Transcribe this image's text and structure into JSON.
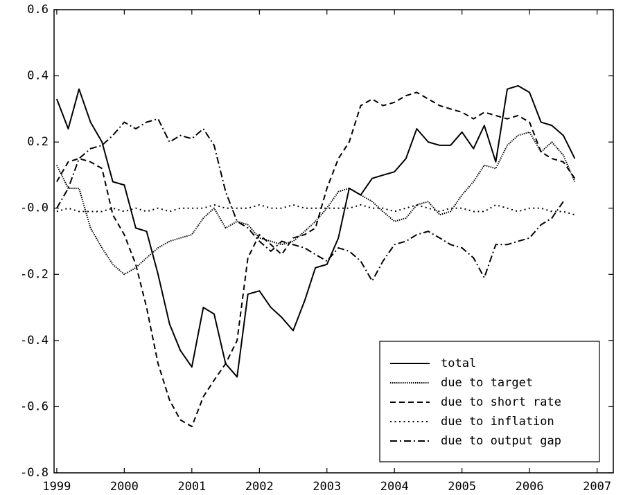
{
  "chart_data": {
    "type": "line",
    "x": [
      1999,
      1999.17,
      1999.33,
      1999.5,
      1999.67,
      1999.83,
      2000,
      2000.17,
      2000.33,
      2000.5,
      2000.67,
      2000.83,
      2001,
      2001.17,
      2001.33,
      2001.5,
      2001.67,
      2001.83,
      2002,
      2002.17,
      2002.33,
      2002.5,
      2002.67,
      2002.83,
      2003,
      2003.17,
      2003.33,
      2003.5,
      2003.67,
      2003.83,
      2004,
      2004.17,
      2004.33,
      2004.5,
      2004.67,
      2004.83,
      2005,
      2005.17,
      2005.33,
      2005.5,
      2005.67,
      2005.83,
      2006,
      2006.17,
      2006.33,
      2006.5,
      2006.67
    ],
    "series": [
      {
        "name": "total",
        "color": "#000000",
        "line_style": "solid",
        "values": [
          0.33,
          0.24,
          0.36,
          0.26,
          0.2,
          0.08,
          0.07,
          -0.06,
          -0.07,
          -0.2,
          -0.35,
          -0.43,
          -0.48,
          -0.3,
          -0.32,
          -0.47,
          -0.51,
          -0.26,
          -0.25,
          -0.3,
          -0.33,
          -0.37,
          -0.28,
          -0.18,
          -0.17,
          -0.09,
          0.06,
          0.04,
          0.09,
          0.1,
          0.11,
          0.15,
          0.24,
          0.2,
          0.19,
          0.19,
          0.23,
          0.18,
          0.25,
          0.14,
          0.36,
          0.37,
          0.35,
          0.26,
          0.25,
          0.22,
          0.15
        ]
      },
      {
        "name": "due to target",
        "color": "#000000",
        "line_style": "dense-dotted",
        "values": [
          0.13,
          0.06,
          0.06,
          -0.06,
          -0.12,
          -0.17,
          -0.2,
          -0.18,
          -0.15,
          -0.12,
          -0.1,
          -0.09,
          -0.08,
          -0.03,
          0.0,
          -0.06,
          -0.04,
          -0.05,
          -0.09,
          -0.1,
          -0.11,
          -0.1,
          -0.07,
          -0.04,
          0.0,
          0.05,
          0.06,
          0.04,
          0.02,
          -0.01,
          -0.04,
          -0.03,
          0.01,
          0.02,
          -0.02,
          -0.01,
          0.04,
          0.08,
          0.13,
          0.12,
          0.19,
          0.22,
          0.23,
          0.17,
          0.2,
          0.16,
          0.08
        ]
      },
      {
        "name": "due to short rate",
        "color": "#000000",
        "line_style": "dashed",
        "values": [
          0.08,
          0.14,
          0.15,
          0.14,
          0.12,
          -0.02,
          -0.08,
          -0.17,
          -0.3,
          -0.47,
          -0.58,
          -0.64,
          -0.66,
          -0.57,
          -0.52,
          -0.47,
          -0.4,
          -0.15,
          -0.08,
          -0.11,
          -0.14,
          -0.09,
          -0.08,
          -0.06,
          0.06,
          0.15,
          0.2,
          0.31,
          0.33,
          0.31,
          0.32,
          0.34,
          0.35,
          0.33,
          0.31,
          0.3,
          0.29,
          0.27,
          0.29,
          0.28,
          0.27,
          0.28,
          0.26,
          0.17,
          0.15,
          0.14,
          0.09
        ]
      },
      {
        "name": "due to inflation",
        "color": "#000000",
        "line_style": "dotted",
        "values": [
          -0.01,
          0.0,
          -0.01,
          -0.01,
          -0.01,
          0.0,
          -0.01,
          0.0,
          -0.01,
          0.0,
          -0.01,
          0.0,
          0.0,
          0.0,
          0.01,
          0.0,
          0.0,
          0.0,
          0.01,
          0.0,
          0.0,
          0.01,
          0.0,
          0.0,
          0.0,
          0.0,
          0.0,
          0.01,
          0.0,
          0.0,
          -0.01,
          0.0,
          0.01,
          0.0,
          -0.01,
          0.0,
          0.0,
          -0.01,
          -0.01,
          0.01,
          0.0,
          -0.01,
          0.0,
          0.0,
          -0.01,
          -0.01,
          -0.02
        ]
      },
      {
        "name": "due to output gap",
        "color": "#000000",
        "line_style": "dash-dot",
        "values": [
          0.0,
          0.06,
          0.15,
          0.18,
          0.19,
          0.22,
          0.26,
          0.24,
          0.26,
          0.27,
          0.2,
          0.22,
          0.21,
          0.24,
          0.19,
          0.05,
          -0.04,
          -0.06,
          -0.1,
          -0.13,
          -0.1,
          -0.11,
          -0.12,
          -0.14,
          -0.16,
          -0.12,
          -0.13,
          -0.16,
          -0.22,
          -0.16,
          -0.11,
          -0.1,
          -0.08,
          -0.07,
          -0.09,
          -0.11,
          -0.12,
          -0.15,
          -0.21,
          -0.11,
          -0.11,
          -0.1,
          -0.09,
          -0.05,
          -0.03,
          0.02,
          null
        ]
      }
    ],
    "xlim": [
      1998.96,
      2007.24
    ],
    "xticks": [
      1999,
      2000,
      2001,
      2002,
      2003,
      2004,
      2005,
      2006,
      2007
    ],
    "ylim": [
      -0.8,
      0.6
    ],
    "yticks": [
      -0.8,
      -0.6,
      -0.4,
      -0.2,
      {
        "value": 0,
        "label": "-0.0"
      },
      0.2,
      0.4,
      0.6
    ],
    "legend": "lower right"
  }
}
